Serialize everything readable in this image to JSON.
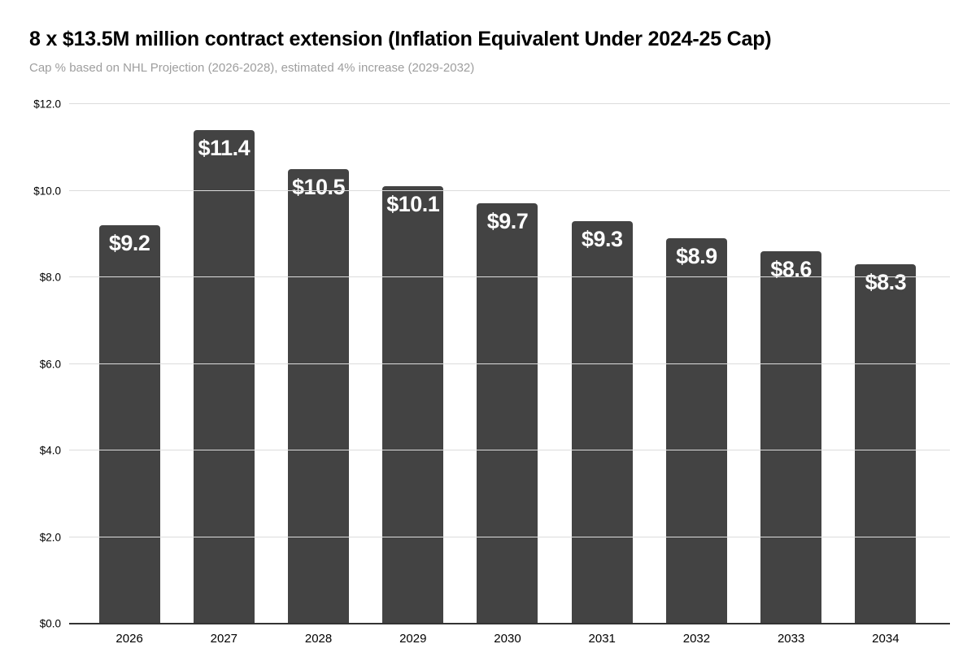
{
  "header": {
    "title": "8 x $13.5M million contract extension (Inflation Equivalent Under 2024-25 Cap)",
    "subtitle": "Cap % based on NHL Projection (2026-2028), estimated 4% increase (2029-2032)"
  },
  "chart_data": {
    "type": "bar",
    "title": "8 x $13.5M million contract extension (Inflation Equivalent Under 2024-25 Cap)",
    "subtitle": "Cap % based on NHL Projection (2026-2028), estimated 4% increase (2029-2032)",
    "categories": [
      "2026",
      "2027",
      "2028",
      "2029",
      "2030",
      "2031",
      "2032",
      "2033",
      "2034"
    ],
    "values": [
      9.2,
      11.4,
      10.5,
      10.1,
      9.7,
      9.3,
      8.9,
      8.6,
      8.3
    ],
    "bar_labels": [
      "$9.2",
      "$11.4",
      "$10.5",
      "$10.1",
      "$9.7",
      "$9.3",
      "$8.9",
      "$8.6",
      "$8.3"
    ],
    "y_ticks": [
      "$0.0",
      "$2.0",
      "$4.0",
      "$6.0",
      "$8.0",
      "$10.0",
      "$12.0"
    ],
    "y_tick_values": [
      0,
      2,
      4,
      6,
      8,
      10,
      12
    ],
    "ylim": [
      0,
      12
    ],
    "xlabel": "",
    "ylabel": "",
    "grid": true,
    "legend": false,
    "colors": {
      "bar": "#434343",
      "bar_label": "#ffffff",
      "gridline": "#dcdcdc",
      "axis_line": "#333333",
      "title": "#000000",
      "subtitle": "#9e9e9e",
      "tick_label": "#000000",
      "background": "#ffffff"
    }
  }
}
